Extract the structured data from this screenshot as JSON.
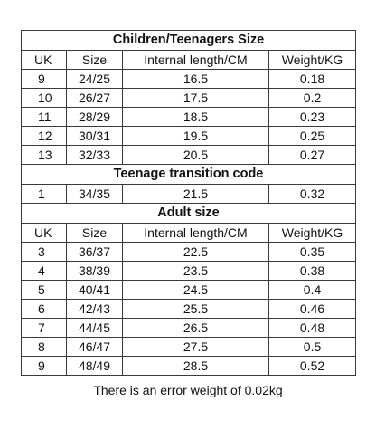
{
  "sections": [
    {
      "title": "Children/Teenagers Size",
      "header": [
        "UK",
        "Size",
        "Internal length/CM",
        "Weight/KG"
      ],
      "rows": [
        [
          "9",
          "24/25",
          "16.5",
          "0.18"
        ],
        [
          "10",
          "26/27",
          "17.5",
          "0.2"
        ],
        [
          "11",
          "28/29",
          "18.5",
          "0.23"
        ],
        [
          "12",
          "30/31",
          "19.5",
          "0.25"
        ],
        [
          "13",
          "32/33",
          "20.5",
          "0.27"
        ]
      ]
    },
    {
      "title": "Teenage transition code",
      "header": [],
      "rows": [
        [
          "1",
          "34/35",
          "21.5",
          "0.32"
        ]
      ]
    },
    {
      "title": "Adult size",
      "header": [
        "UK",
        "Size",
        "Internal length/CM",
        "Weight/KG"
      ],
      "rows": [
        [
          "3",
          "36/37",
          "22.5",
          "0.35"
        ],
        [
          "4",
          "38/39",
          "23.5",
          "0.38"
        ],
        [
          "5",
          "40/41",
          "24.5",
          "0.4"
        ],
        [
          "6",
          "42/43",
          "25.5",
          "0.46"
        ],
        [
          "7",
          "44/45",
          "26.5",
          "0.48"
        ],
        [
          "8",
          "46/47",
          "27.5",
          "0.5"
        ],
        [
          "9",
          "48/49",
          "28.5",
          "0.52"
        ]
      ]
    }
  ],
  "footnote": "There is an error weight of 0.02kg"
}
